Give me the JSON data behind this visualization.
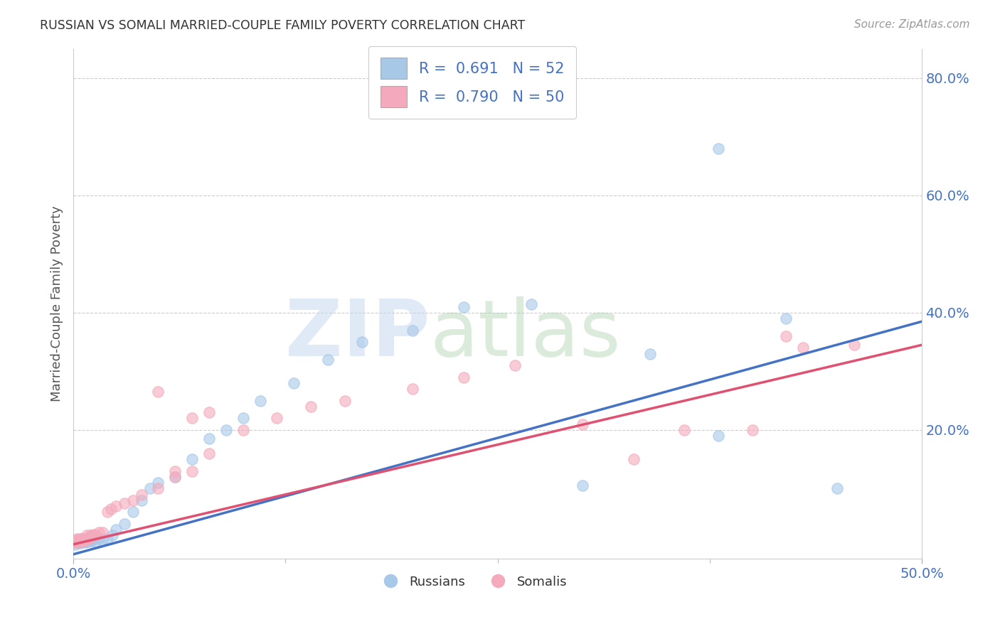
{
  "title": "RUSSIAN VS SOMALI MARRIED-COUPLE FAMILY POVERTY CORRELATION CHART",
  "source": "Source: ZipAtlas.com",
  "ylabel": "Married-Couple Family Poverty",
  "xlim": [
    0.0,
    0.5
  ],
  "ylim": [
    -0.02,
    0.85
  ],
  "xtick_labels": [
    "0.0%",
    "50.0%"
  ],
  "xtick_positions": [
    0.0,
    0.5
  ],
  "ytick_labels": [
    "20.0%",
    "40.0%",
    "60.0%",
    "80.0%"
  ],
  "ytick_positions": [
    0.2,
    0.4,
    0.6,
    0.8
  ],
  "russian_color": "#A8C8E8",
  "somali_color": "#F4AABC",
  "russian_line_color": "#4472C4",
  "somali_line_color": "#E05070",
  "tick_label_color": "#4472C4",
  "r_russian": 0.691,
  "n_russian": 52,
  "r_somali": 0.79,
  "n_somali": 50,
  "background_color": "#FFFFFF",
  "plot_bg_color": "#FFFFFF",
  "grid_color": "#CCCCCC",
  "russian_x": [
    0.001,
    0.001,
    0.002,
    0.002,
    0.003,
    0.003,
    0.004,
    0.004,
    0.005,
    0.005,
    0.005,
    0.006,
    0.006,
    0.007,
    0.007,
    0.007,
    0.008,
    0.008,
    0.009,
    0.01,
    0.01,
    0.011,
    0.012,
    0.013,
    0.015,
    0.017,
    0.02,
    0.023,
    0.025,
    0.03,
    0.035,
    0.04,
    0.045,
    0.05,
    0.06,
    0.07,
    0.08,
    0.09,
    0.1,
    0.11,
    0.13,
    0.15,
    0.17,
    0.2,
    0.23,
    0.27,
    0.3,
    0.34,
    0.38,
    0.42,
    0.45,
    0.38
  ],
  "russian_y": [
    0.005,
    0.008,
    0.01,
    0.012,
    0.008,
    0.01,
    0.012,
    0.007,
    0.01,
    0.008,
    0.015,
    0.01,
    0.012,
    0.01,
    0.012,
    0.008,
    0.012,
    0.01,
    0.012,
    0.01,
    0.015,
    0.012,
    0.015,
    0.01,
    0.015,
    0.012,
    0.015,
    0.02,
    0.03,
    0.04,
    0.06,
    0.08,
    0.1,
    0.11,
    0.12,
    0.15,
    0.185,
    0.2,
    0.22,
    0.25,
    0.28,
    0.32,
    0.35,
    0.37,
    0.41,
    0.415,
    0.105,
    0.33,
    0.19,
    0.39,
    0.1,
    0.68
  ],
  "somali_x": [
    0.001,
    0.001,
    0.002,
    0.002,
    0.003,
    0.003,
    0.004,
    0.005,
    0.005,
    0.006,
    0.006,
    0.007,
    0.008,
    0.008,
    0.009,
    0.01,
    0.01,
    0.011,
    0.012,
    0.013,
    0.015,
    0.017,
    0.02,
    0.022,
    0.025,
    0.03,
    0.035,
    0.04,
    0.05,
    0.06,
    0.07,
    0.08,
    0.1,
    0.12,
    0.14,
    0.16,
    0.2,
    0.23,
    0.26,
    0.3,
    0.33,
    0.36,
    0.4,
    0.43,
    0.46,
    0.05,
    0.06,
    0.07,
    0.42,
    0.08
  ],
  "somali_y": [
    0.008,
    0.01,
    0.012,
    0.015,
    0.01,
    0.012,
    0.015,
    0.01,
    0.015,
    0.012,
    0.015,
    0.012,
    0.015,
    0.02,
    0.015,
    0.018,
    0.02,
    0.02,
    0.022,
    0.02,
    0.025,
    0.025,
    0.06,
    0.065,
    0.07,
    0.075,
    0.08,
    0.09,
    0.1,
    0.12,
    0.13,
    0.16,
    0.2,
    0.22,
    0.24,
    0.25,
    0.27,
    0.29,
    0.31,
    0.21,
    0.15,
    0.2,
    0.2,
    0.34,
    0.345,
    0.265,
    0.13,
    0.22,
    0.36,
    0.23
  ],
  "rus_line_x0": 0.0,
  "rus_line_y0": -0.012,
  "rus_line_x1": 0.5,
  "rus_line_y1": 0.385,
  "som_line_x0": 0.0,
  "som_line_y0": 0.005,
  "som_line_x1": 0.5,
  "som_line_y1": 0.345
}
